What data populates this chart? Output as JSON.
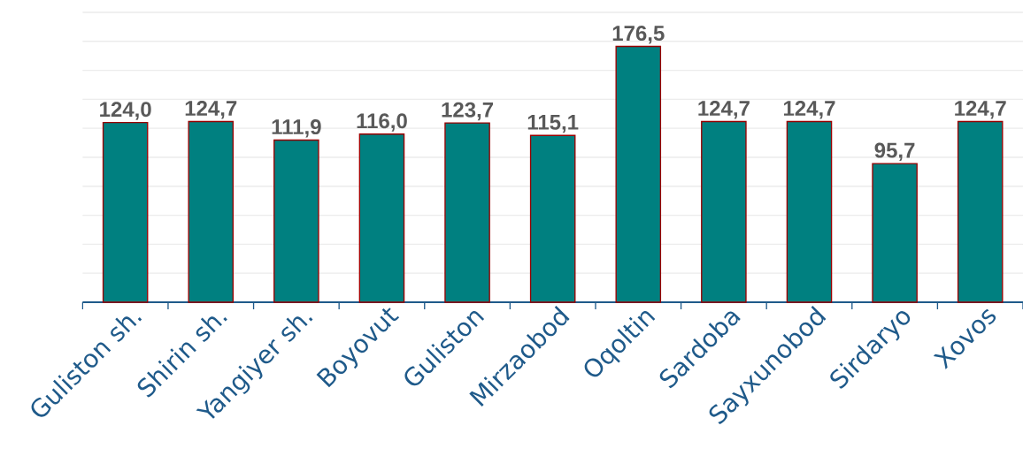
{
  "chart_data": {
    "type": "bar",
    "categories": [
      "Guliston  sh.",
      "Shirin sh.",
      "Yangiyer sh.",
      "Boyovut",
      "Guliston",
      "Mirzaobod",
      "Oqoltin",
      "Sardoba",
      "Sayxunobod",
      "Sirdaryo",
      "Xovos"
    ],
    "values": [
      124.0,
      124.7,
      111.9,
      116.0,
      123.7,
      115.1,
      176.5,
      124.7,
      124.7,
      95.7,
      124.7
    ],
    "value_labels": [
      "124,0",
      "124,7",
      "111,9",
      "116,0",
      "123,7",
      "115,1",
      "176,5",
      "124,7",
      "124,7",
      "95,7",
      "124,7"
    ],
    "color": "#008080",
    "ylim": [
      0,
      200
    ],
    "yticks": [
      {
        "value": 0,
        "label": null
      },
      {
        "value": 20,
        "label": null
      },
      {
        "value": 40,
        "label": null
      },
      {
        "value": 60,
        "label": null
      },
      {
        "value": 80,
        "label": null
      },
      {
        "value": 100,
        "label": null
      },
      {
        "value": 120,
        "label": null
      },
      {
        "value": 140,
        "label": null
      },
      {
        "value": 160,
        "label": null
      },
      {
        "value": 180,
        "label": null
      },
      {
        "value": 200,
        "label": null
      }
    ],
    "grid": "y",
    "tick_labels": "x"
  }
}
